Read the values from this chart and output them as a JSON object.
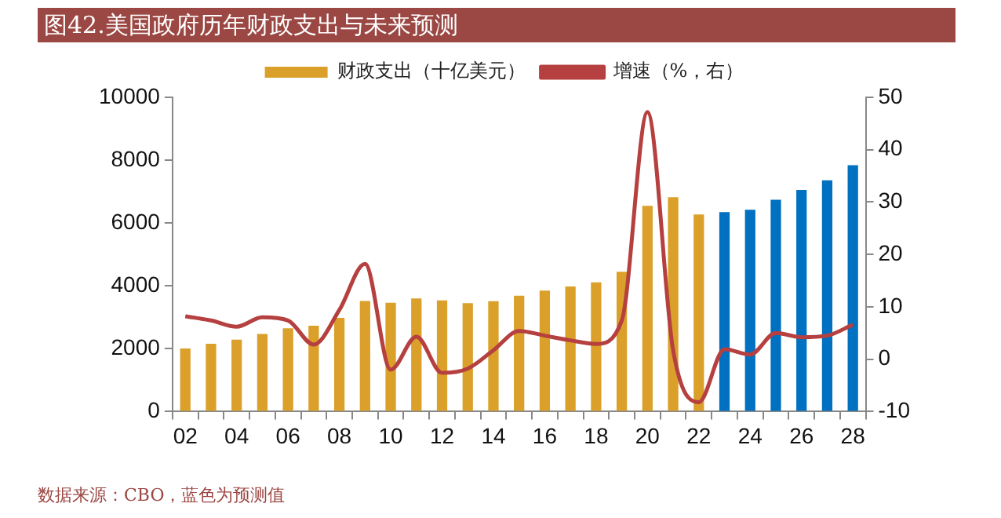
{
  "chart_data": {
    "type": "bar",
    "title": "图42.美国政府历年财政支出与未来预测",
    "annotations": [
      "数据来源：CBO，蓝色为预测值"
    ],
    "categories": [
      "02",
      null,
      "04",
      null,
      "06",
      null,
      "08",
      null,
      "10",
      null,
      "12",
      null,
      "14",
      null,
      "16",
      null,
      "18",
      null,
      "20",
      null,
      "22",
      null,
      "24",
      null,
      "26",
      null,
      "28"
    ],
    "series": [
      {
        "type": "bar",
        "name": "财政支出（十亿美元）",
        "color": "#daa02a",
        "colors": [
          "#daa02a",
          "#daa02a",
          "#daa02a",
          "#daa02a",
          "#daa02a",
          "#daa02a",
          "#daa02a",
          "#daa02a",
          "#daa02a",
          "#daa02a",
          "#daa02a",
          "#daa02a",
          "#daa02a",
          "#daa02a",
          "#daa02a",
          "#daa02a",
          "#daa02a",
          "#daa02a",
          "#daa02a",
          "#daa02a",
          "#daa02a",
          "#0070c0",
          "#0070c0",
          "#0070c0",
          "#0070c0",
          "#0070c0",
          "#0070c0"
        ],
        "values": [
          2010,
          2160,
          2290,
          2470,
          2650,
          2730,
          2980,
          3520,
          3460,
          3600,
          3540,
          3450,
          3510,
          3690,
          3850,
          3980,
          4110,
          4450,
          6550,
          6820,
          6270,
          6350,
          6420,
          6740,
          7050,
          7360,
          7840
        ]
      },
      {
        "type": "line",
        "name": "增速（%，右）",
        "color": "#b5403f",
        "axis": "y2",
        "values": [
          8.2,
          7.4,
          6.2,
          8,
          7.4,
          2.8,
          9.4,
          18.2,
          -2,
          4.3,
          -2.6,
          -1.8,
          1.7,
          5.4,
          4.5,
          3.6,
          2.9,
          7.4,
          47.2,
          1.7,
          -8.2,
          1.9,
          0.9,
          5,
          4.2,
          4.5,
          6.6
        ]
      }
    ],
    "ylim": [
      0,
      10000
    ],
    "yticks": [
      0,
      2000,
      4000,
      6000,
      8000,
      10000
    ],
    "y2lim": [
      -10,
      50
    ],
    "y2ticks": [
      -10,
      0,
      10,
      20,
      30,
      40,
      50
    ],
    "legend": "top",
    "marker": "none"
  }
}
